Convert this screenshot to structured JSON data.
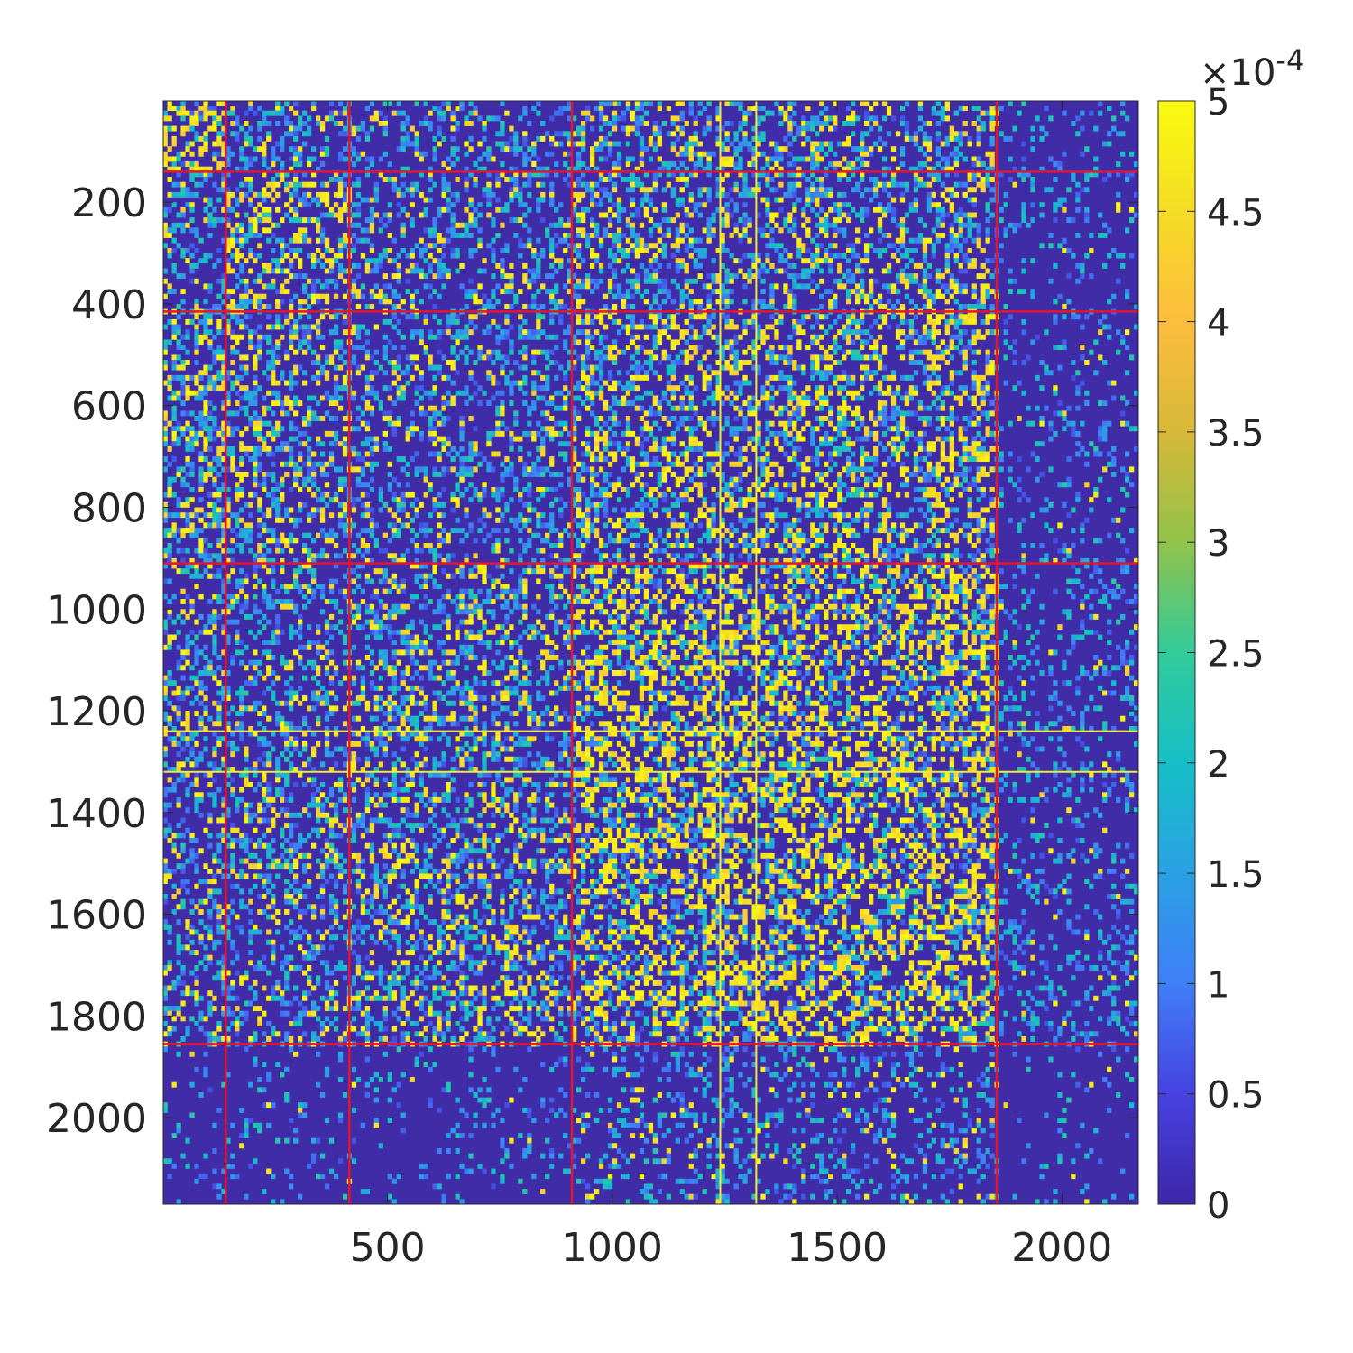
{
  "chart_data": {
    "type": "heatmap",
    "title": "",
    "xlabel": "",
    "ylabel": "",
    "matrix_size": [
      2170,
      2170
    ],
    "xlim": [
      1,
      2170
    ],
    "ylim": [
      1,
      2170
    ],
    "y_direction": "reversed",
    "x_ticks": [
      500,
      1000,
      1500,
      2000
    ],
    "x_tick_labels": [
      "500",
      "1000",
      "1500",
      "2000"
    ],
    "y_ticks": [
      200,
      400,
      600,
      800,
      1000,
      1200,
      1400,
      1600,
      1800,
      2000
    ],
    "y_tick_labels": [
      "200",
      "400",
      "600",
      "800",
      "1000",
      "1200",
      "1400",
      "1600",
      "1800",
      "2000"
    ],
    "colormap": "parula",
    "colormap_stops": [
      "#3e26a8",
      "#4742e1",
      "#3f7ff8",
      "#2aa1e4",
      "#16bfc7",
      "#32cb9a",
      "#92c34b",
      "#d7b838",
      "#fdbd3d",
      "#f5dc25",
      "#f9fb0e"
    ],
    "background_color": "#3f2ca6",
    "color_range": [
      0,
      0.0005
    ],
    "colorbar": {
      "location": "right",
      "ticks": [
        0,
        0.5,
        1,
        1.5,
        2,
        2.5,
        3,
        3.5,
        4,
        4.5,
        5
      ],
      "tick_labels": [
        "0",
        "0.5",
        "1",
        "1.5",
        "2",
        "2.5",
        "3",
        "3.5",
        "4",
        "4.5",
        "5"
      ],
      "exponent_base": "×10",
      "exponent_power": "-4"
    },
    "block_boundaries": [
      140,
      415,
      910,
      1855
    ],
    "boundary_color": "#e5152e",
    "highlight_lines": [
      1240,
      1320
    ],
    "highlight_line_color": "#f0ec2e"
  }
}
